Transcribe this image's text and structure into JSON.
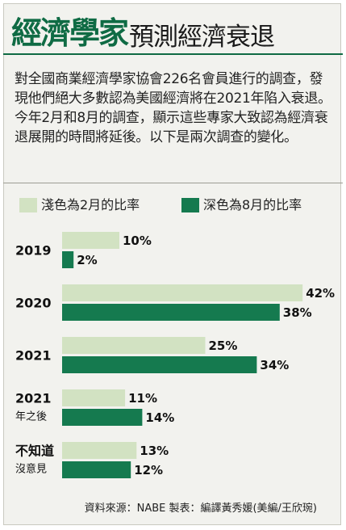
{
  "title": {
    "main": "經濟學家",
    "sub": "預測經濟衰退"
  },
  "description": "對全國商業經濟學家協會226名會員進行的調查，發現他們絕大多數認為美國經濟將在2021年陷入衰退。今年2月和8月的調查，顯示這些專家大致認為經濟衰退展開的時間將延後。以下是兩次調查的變化。",
  "legend": {
    "light": {
      "label": "淺色為2月的比率",
      "color": "#d2e2c2"
    },
    "dark": {
      "label": "深色為8月的比率",
      "color": "#157a4f"
    }
  },
  "source": "資料來源：NABE 製表：編譯黃秀媛(美編/王欣琬)",
  "chart_data": {
    "type": "bar",
    "orientation": "horizontal",
    "categories": [
      {
        "line1": "2019",
        "line2": ""
      },
      {
        "line1": "2020",
        "line2": ""
      },
      {
        "line1": "2021",
        "line2": ""
      },
      {
        "line1": "2021",
        "line2": "年之後"
      },
      {
        "line1": "不知道",
        "line2": "沒意見"
      }
    ],
    "series": [
      {
        "name": "淺色為2月的比率",
        "color": "#d2e2c2",
        "values": [
          10,
          42,
          25,
          11,
          13
        ]
      },
      {
        "name": "深色為8月的比率",
        "color": "#157a4f",
        "values": [
          2,
          38,
          34,
          14,
          12
        ]
      }
    ],
    "value_suffix": "%",
    "title": "",
    "xlabel": "",
    "ylabel": ""
  }
}
